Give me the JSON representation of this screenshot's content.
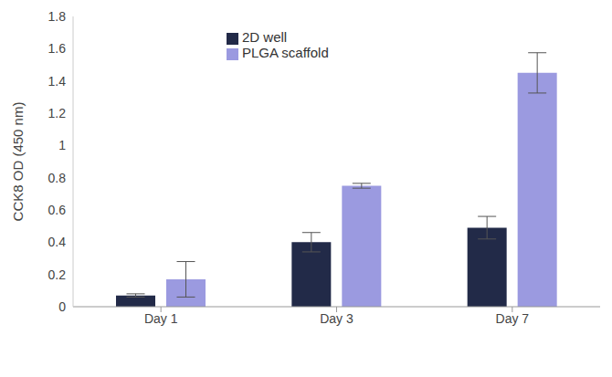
{
  "chart_data": {
    "type": "bar",
    "y_label": "CCK8 OD (450 nm)",
    "categories": [
      "Day 1",
      "Day 3",
      "Day 7"
    ],
    "series": [
      {
        "name": "2D well",
        "color": "#222a48",
        "values": [
          0.07,
          0.4,
          0.49
        ],
        "errors": [
          0.01,
          0.06,
          0.07
        ]
      },
      {
        "name": "PLGA scaffold",
        "color": "#9b9ae0",
        "values": [
          0.17,
          0.75,
          1.45
        ],
        "errors": [
          0.11,
          0.015,
          0.125
        ]
      }
    ],
    "ylim": [
      0,
      1.8
    ],
    "yticks": [
      0,
      0.2,
      0.4,
      0.6,
      0.8,
      1,
      1.2,
      1.4,
      1.6,
      1.8
    ],
    "grid": false,
    "legend": "upper center"
  }
}
